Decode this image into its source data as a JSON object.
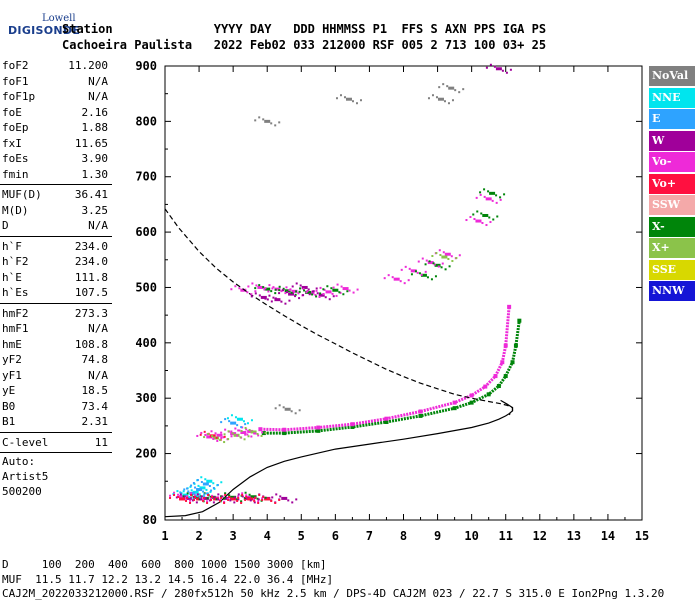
{
  "logo": {
    "top": "Lowell",
    "main": "DIGISONDE"
  },
  "header": {
    "line1": "Station              YYYY DAY   DDD HHMMSS P1  FFS S AXN PPS IGA PS",
    "line2": "Cachoeira Paulista   2022 Feb02 033 212000 RSF 005 2 713 100 03+ 25"
  },
  "params": {
    "group1": [
      {
        "name": "foF2",
        "value": "11.200"
      },
      {
        "name": "foF1",
        "value": "N/A"
      },
      {
        "name": "foF1p",
        "value": "N/A"
      },
      {
        "name": "foE",
        "value": "2.16"
      },
      {
        "name": "foEp",
        "value": "1.88"
      },
      {
        "name": "fxI",
        "value": "11.65"
      },
      {
        "name": "foEs",
        "value": "3.90"
      },
      {
        "name": "fmin",
        "value": "1.30"
      }
    ],
    "group2": [
      {
        "name": "MUF(D)",
        "value": "36.41"
      },
      {
        "name": "M(D)",
        "value": "3.25"
      },
      {
        "name": "D",
        "value": "N/A"
      }
    ],
    "group3": [
      {
        "name": "h`F",
        "value": "234.0"
      },
      {
        "name": "h`F2",
        "value": "234.0"
      },
      {
        "name": "h`E",
        "value": "111.8"
      },
      {
        "name": "h`Es",
        "value": "107.5"
      }
    ],
    "group4": [
      {
        "name": "hmF2",
        "value": "273.3"
      },
      {
        "name": "hmF1",
        "value": "N/A"
      },
      {
        "name": "hmE",
        "value": "108.8"
      },
      {
        "name": "yF2",
        "value": "74.8"
      },
      {
        "name": "yF1",
        "value": "N/A"
      },
      {
        "name": "yE",
        "value": "18.5"
      },
      {
        "name": "B0",
        "value": "73.4"
      },
      {
        "name": "B1",
        "value": "2.31"
      }
    ],
    "group5": [
      {
        "name": "C-level",
        "value": "11"
      }
    ],
    "autoscale": {
      "line1": "Auto:",
      "line2": "Artist5",
      "line3": "500200"
    }
  },
  "legend": [
    {
      "label": "NoVal",
      "color": "#808080"
    },
    {
      "label": "NNE",
      "color": "#00e5ee"
    },
    {
      "label": "E",
      "color": "#2ea3ff"
    },
    {
      "label": "W",
      "color": "#a0009a"
    },
    {
      "label": "Vo-",
      "color": "#ee2ad8"
    },
    {
      "label": "Vo+",
      "color": "#ff1040"
    },
    {
      "label": "SSW",
      "color": "#f4a9a9"
    },
    {
      "label": "X-",
      "color": "#00850a"
    },
    {
      "label": "X+",
      "color": "#8bc34a"
    },
    {
      "label": "SSE",
      "color": "#d8d800"
    },
    {
      "label": "NNW",
      "color": "#1515d6"
    }
  ],
  "footer": {
    "line1": "D     100  200  400  600  800 1000 1500 3000 [km]",
    "line2": "MUF  11.5 11.7 12.2 13.2 14.5 16.4 22.0 36.4 [MHz]",
    "line3": "CAJ2M_2022033212000.RSF / 280fx512h 50 kHz 2.5 km / DPS-4D CAJ2M 023 / 22.7 S 315.0 E Ion2Png 1.3.20"
  },
  "chart_data": {
    "type": "scatter",
    "xlim": [
      1,
      15
    ],
    "ylim": [
      80,
      900
    ],
    "x_ticks": [
      1,
      2,
      3,
      4,
      5,
      6,
      7,
      8,
      9,
      10,
      11,
      12,
      13,
      14,
      15
    ],
    "y_ticks": [
      80,
      200,
      300,
      400,
      500,
      600,
      700,
      800,
      900
    ],
    "grid": false,
    "series": [
      {
        "name": "X-",
        "color": "#00850a",
        "style": "trace",
        "x": [
          3.9,
          4.5,
          5.5,
          6.5,
          7.5,
          8.5,
          9.5,
          10.0,
          10.5,
          10.8,
          11.0,
          11.2,
          11.3,
          11.4
        ],
        "y": [
          237,
          237,
          241,
          248,
          257,
          268,
          282,
          292,
          307,
          322,
          340,
          365,
          395,
          440
        ]
      },
      {
        "name": "Vo-",
        "color": "#ee2ad8",
        "style": "trace",
        "x": [
          3.8,
          4.5,
          5.5,
          6.5,
          7.5,
          8.5,
          9.5,
          10.0,
          10.4,
          10.7,
          10.9,
          11.0,
          11.1
        ],
        "y": [
          244,
          243,
          247,
          253,
          263,
          276,
          292,
          305,
          321,
          340,
          365,
          395,
          465
        ]
      },
      {
        "name": "Vo-",
        "color": "#ee2ad8",
        "style": "echoes",
        "x": [
          3.3,
          3.8,
          4.3,
          4.8,
          5.3,
          5.8,
          6.3,
          7.8,
          8.3,
          8.8,
          9.3,
          10.2,
          10.5
        ],
        "y": [
          495,
          500,
          497,
          493,
          490,
          492,
          498,
          515,
          530,
          545,
          560,
          620,
          660
        ]
      },
      {
        "name": "Vo-",
        "color": "#ee2ad8",
        "style": "echoes",
        "x": [
          2.3,
          2.6,
          3.0,
          3.3,
          3.5,
          1.5,
          2.0,
          2.5,
          3.0,
          3.5
        ],
        "y": [
          230,
          233,
          236,
          238,
          240,
          122,
          121,
          120,
          120,
          121
        ]
      },
      {
        "name": "X-",
        "color": "#00850a",
        "style": "echoes",
        "x": [
          4.0,
          4.6,
          5.2,
          6.0,
          8.6,
          9.0,
          10.4,
          10.6,
          1.9,
          2.4,
          3.0,
          3.6
        ],
        "y": [
          497,
          494,
          491,
          495,
          522,
          540,
          630,
          670,
          121,
          121,
          121,
          122
        ]
      },
      {
        "name": "NNE",
        "color": "#00e5ee",
        "style": "echoes",
        "x": [
          1.6,
          1.9,
          2.1,
          2.3,
          3.2
        ],
        "y": [
          125,
          130,
          138,
          150,
          262
        ]
      },
      {
        "name": "E",
        "color": "#2ea3ff",
        "style": "echoes",
        "x": [
          1.8,
          2.0,
          2.2,
          3.0
        ],
        "y": [
          128,
          135,
          145,
          255
        ]
      },
      {
        "name": "W",
        "color": "#a0009a",
        "style": "echoes",
        "x": [
          3.9,
          4.3,
          4.7,
          5.1,
          5.6,
          1.7,
          2.2,
          2.8,
          3.4,
          4.0,
          4.5,
          10.8
        ],
        "y": [
          482,
          478,
          488,
          500,
          486,
          119,
          119,
          119,
          119,
          119,
          119,
          895
        ]
      },
      {
        "name": "Vo+",
        "color": "#ff1040",
        "style": "echoes",
        "x": [
          1.5,
          2.0,
          2.5,
          3.0,
          3.5,
          4.0,
          2.4
        ],
        "y": [
          118,
          118,
          118,
          118,
          118,
          118,
          232
        ]
      },
      {
        "name": "X+",
        "color": "#8bc34a",
        "style": "echoes",
        "x": [
          2.5,
          3.1,
          3.6,
          9.2
        ],
        "y": [
          228,
          233,
          239,
          555
        ]
      },
      {
        "name": "NoVal",
        "color": "#808080",
        "style": "echoes",
        "x": [
          4.0,
          4.6,
          6.4,
          9.1,
          9.4
        ],
        "y": [
          800,
          280,
          840,
          840,
          860
        ]
      },
      {
        "name": "",
        "color": "#000000",
        "style": "solid",
        "x": [
          1.0,
          1.6,
          2.1,
          2.6,
          3.0,
          3.5,
          4.0,
          4.5,
          5.0,
          6.0,
          7.0,
          8.0,
          9.0,
          10.0,
          10.5,
          10.8,
          11.0,
          11.1,
          11.2,
          11.2,
          11.05,
          10.85
        ],
        "y": [
          86,
          88,
          95,
          112,
          135,
          158,
          175,
          186,
          194,
          208,
          217,
          226,
          236,
          247,
          255,
          262,
          268,
          272,
          277,
          283,
          289,
          296
        ]
      },
      {
        "name": "",
        "color": "#000000",
        "style": "dashed",
        "x": [
          1.0,
          1.4,
          2.0,
          2.5,
          3.0,
          3.5,
          4.0,
          4.5,
          5.0,
          5.5,
          6.0,
          6.5,
          7.0,
          7.5,
          8.0,
          8.5,
          9.0,
          9.5,
          10.0,
          10.5,
          10.85,
          11.05,
          11.2,
          11.2,
          11.1
        ],
        "y": [
          642,
          608,
          565,
          535,
          510,
          488,
          468,
          449,
          431,
          414,
          398,
          382,
          367,
          352,
          339,
          327,
          317,
          307,
          300,
          294,
          290,
          287,
          283,
          277,
          270
        ]
      }
    ]
  }
}
